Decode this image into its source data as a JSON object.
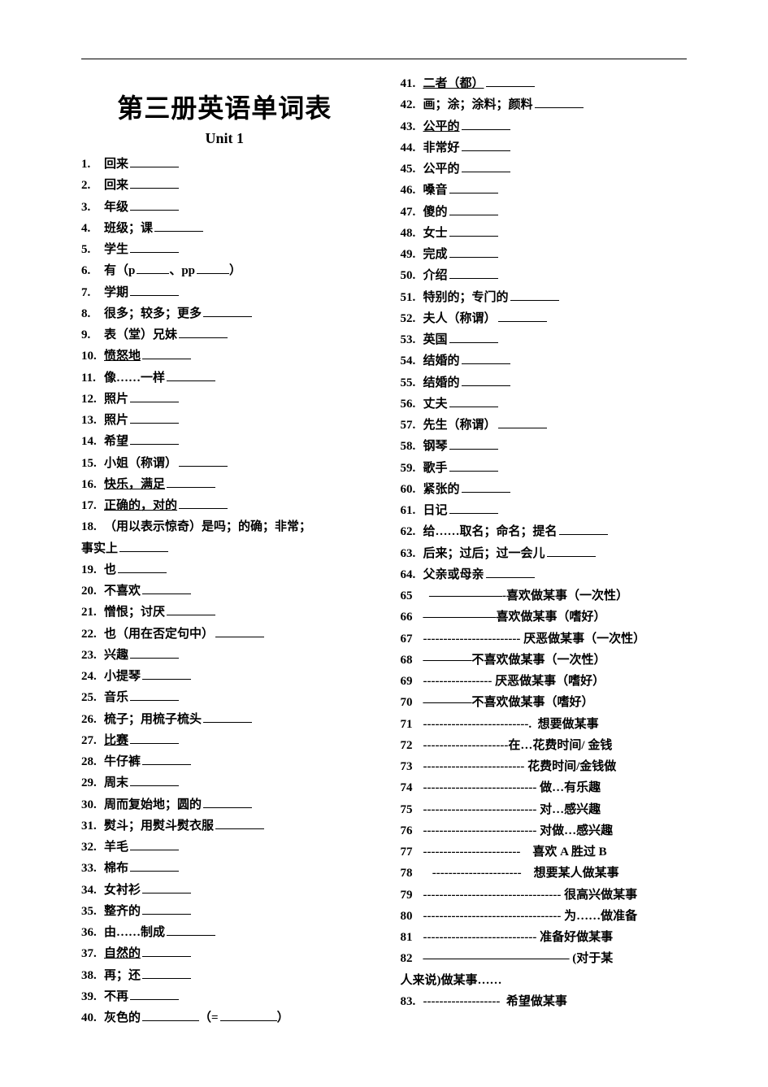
{
  "doc": {
    "title": "第三册英语单词表",
    "subtitle": "Unit 1",
    "text_color": "#000000",
    "background_color": "#ffffff",
    "font_size_title": 32,
    "font_size_body": 15,
    "line_height": 1.75
  },
  "left": [
    {
      "n": "1.",
      "t": "回来",
      "blank": true
    },
    {
      "n": "2.",
      "t": "回来",
      "blank": true
    },
    {
      "n": "3.",
      "t": "年级",
      "blank": true
    },
    {
      "n": "4.",
      "t": "班级；课",
      "blank": true
    },
    {
      "n": "5.",
      "t": "学生",
      "blank": true
    },
    {
      "n": "6.",
      "raw": "有（p<span class=\"blank short\"></span>、pp<span class=\"blank short\"></span>）"
    },
    {
      "n": "7.",
      "t": "学期",
      "blank": true
    },
    {
      "n": "8.",
      "t": "很多；较多；更多",
      "blank": true
    },
    {
      "n": "9.",
      "t": "表（堂）兄妹",
      "blank": true
    },
    {
      "n": "10.",
      "t": "愤怒地",
      "under": true,
      "blank": true
    },
    {
      "n": "11.",
      "t": "像……一样",
      "blank": true
    },
    {
      "n": "12.",
      "t": "照片",
      "blank": true
    },
    {
      "n": "13.",
      "t": "照片",
      "blank": true
    },
    {
      "n": "14.",
      "t": "希望",
      "blank": true
    },
    {
      "n": "15.",
      "t": "小姐（称谓）",
      "blank": true
    },
    {
      "n": "16.",
      "t": "快乐，满足",
      "under": true,
      "blank": true
    },
    {
      "n": "17.",
      "t": "正确的，对的",
      "under": true,
      "blank": true
    },
    {
      "n": "18.",
      "raw": "（用以表示惊奇）是吗；的确；非常；<br><span style=\"margin-left:0\">事实上</span><span class=\"blank\"></span>"
    },
    {
      "n": "19.",
      "t": "也",
      "blank": true
    },
    {
      "n": "20.",
      "t": "不喜欢",
      "blank": true
    },
    {
      "n": "21.",
      "t": "憎恨；讨厌",
      "blank": true
    },
    {
      "n": "22.",
      "t": "也（用在否定句中）",
      "blank": true
    },
    {
      "n": "23.",
      "t": "兴趣",
      "blank": true
    },
    {
      "n": "24.",
      "t": "小提琴",
      "blank": true
    },
    {
      "n": "25.",
      "t": "音乐",
      "blank": true
    },
    {
      "n": "26.",
      "t": "梳子；用梳子梳头",
      "blank": true
    },
    {
      "n": "27.",
      "t": "比赛",
      "under": true,
      "blank": true
    },
    {
      "n": "28.",
      "t": "牛仔裤",
      "blank": true
    },
    {
      "n": "29.",
      "t": "周末",
      "blank": true
    },
    {
      "n": "30.",
      "t": "周而复始地；圆的",
      "blank": true
    },
    {
      "n": "31.",
      "t": "熨斗；用熨斗熨衣服",
      "blank": true
    },
    {
      "n": "32.",
      "t": "羊毛",
      "blank": true
    },
    {
      "n": "33.",
      "t": "棉布",
      "blank": true
    },
    {
      "n": "34.",
      "t": "女衬衫",
      "blank": true
    },
    {
      "n": "35.",
      "t": "整齐的",
      "blank": true
    },
    {
      "n": "36.",
      "t": "由……制成",
      "blank": true
    },
    {
      "n": "37.",
      "t": "自然的",
      "under": true,
      "blank": true
    },
    {
      "n": "38.",
      "t": "再；还",
      "blank": true
    },
    {
      "n": "39.",
      "t": "不再",
      "blank": true
    },
    {
      "n": "40.",
      "raw": "灰色的<span class=\"blank med\"></span>（=<span class=\"blank med\"></span>）"
    }
  ],
  "right": [
    {
      "n": "41.",
      "t": "二者（都）",
      "under": true,
      "blank": true
    },
    {
      "n": "42.",
      "t": "画；涂；涂料；颜料",
      "blank": true
    },
    {
      "n": "43.",
      "t": "公平的",
      "under": true,
      "blank": true
    },
    {
      "n": "44.",
      "t": "非常好",
      "blank": true
    },
    {
      "n": "45.",
      "t": "公平的",
      "blank": true
    },
    {
      "n": "46.",
      "t": "嗓音",
      "blank": true
    },
    {
      "n": "47.",
      "t": "傻的",
      "blank": true
    },
    {
      "n": "48.",
      "t": "女士",
      "blank": true
    },
    {
      "n": "49.",
      "t": "完成",
      "blank": true
    },
    {
      "n": "50.",
      "t": "介绍",
      "blank": true
    },
    {
      "n": "51.",
      "t": "特别的；专门的",
      "blank": true
    },
    {
      "n": "52.",
      "t": "夫人（称谓）",
      "blank": true
    },
    {
      "n": "53.",
      "t": "英国",
      "blank": true
    },
    {
      "n": "54.",
      "t": "结婚的",
      "blank": true
    },
    {
      "n": "55.",
      "t": "结婚的",
      "blank": true
    },
    {
      "n": "56.",
      "t": "丈夫",
      "blank": true
    },
    {
      "n": "57.",
      "t": "先生（称谓）",
      "blank": true
    },
    {
      "n": "58.",
      "t": "钢琴",
      "blank": true
    },
    {
      "n": "59.",
      "t": "歌手",
      "blank": true
    },
    {
      "n": "60.",
      "t": "紧张的",
      "blank": true
    },
    {
      "n": "61.",
      "t": "日记",
      "blank": true
    },
    {
      "n": "62.",
      "t": "给……取名；命名；提名",
      "blank": true
    },
    {
      "n": "63.",
      "t": "后来；过后；过一会儿",
      "blank": true
    },
    {
      "n": "64.",
      "t": "父亲或母亲",
      "blank": true
    },
    {
      "n": "65",
      "raw": "  <span class=\"dashes\">——————-</span>喜欢做某事（一次性）"
    },
    {
      "n": "66",
      "raw": "<span class=\"dashes\">——————</span>喜欢做某事（嗜好）"
    },
    {
      "n": "67",
      "raw": "<span class=\"dashes\">------------------------</span> 厌恶做某事（一次性）"
    },
    {
      "n": "68",
      "raw": "<span class=\"dashes\">————</span>不喜欢做某事（一次性）"
    },
    {
      "n": "69",
      "raw": "<span class=\"dashes\">-----------------</span> 厌恶做某事（嗜好）"
    },
    {
      "n": "70",
      "raw": "<span class=\"dashes\">————</span>不喜欢做某事（嗜好）"
    },
    {
      "n": "71",
      "raw": "<span class=\"dashes\">--------------------------.</span>  想要做某事"
    },
    {
      "n": "72",
      "raw": "<span class=\"dashes\">---------------------</span>在…花费时间/ 金钱"
    },
    {
      "n": "73",
      "raw": "<span class=\"dashes\">-------------------------</span> 花费时间/金钱做"
    },
    {
      "n": "74",
      "raw": "<span class=\"dashes\">----------------------------</span> 做…有乐趣"
    },
    {
      "n": "75",
      "raw": "<span class=\"dashes\">----------------------------</span> 对…感兴趣"
    },
    {
      "n": "76",
      "raw": "<span class=\"dashes\">----------------------------</span> 对做…感兴趣"
    },
    {
      "n": "77",
      "raw": "<span class=\"dashes\">------------------------</span>    喜欢 A 胜过 B"
    },
    {
      "n": "78",
      "raw": "   <span class=\"dashes\">----------------------</span>    想要某人做某事"
    },
    {
      "n": "79",
      "raw": "<span class=\"dashes\">----------------------------------</span> 很高兴做某事"
    },
    {
      "n": "80",
      "raw": "<span class=\"dashes\">----------------------------------</span> 为……做准备"
    },
    {
      "n": "81",
      "raw": "<span class=\"dashes\">----------------------------</span> 准备好做某事"
    },
    {
      "n": "82",
      "raw": "<span class=\"dashes\">————————————</span> (对于某<br>人来说)做某事……"
    },
    {
      "n": "83.",
      "raw": "<span class=\"dashes\">-------------------</span>  希望做某事"
    }
  ]
}
